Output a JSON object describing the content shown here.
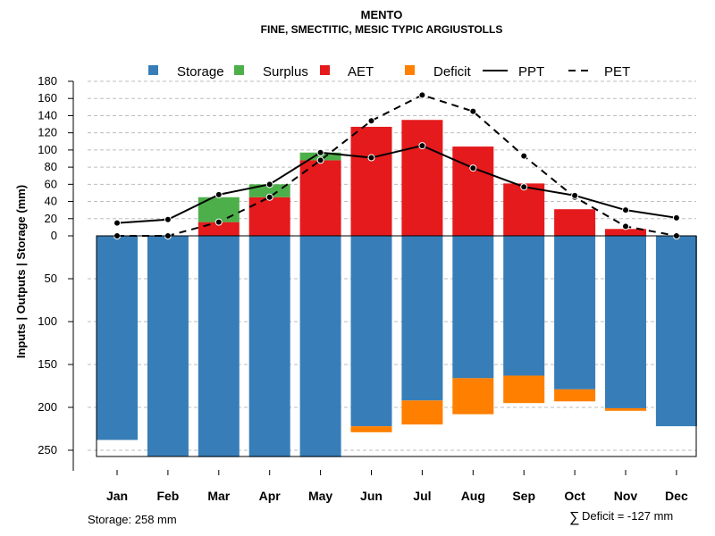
{
  "chart_data": {
    "type": "bar",
    "title": "MENTO",
    "subtitle": "FINE, SMECTITIC, MESIC TYPIC ARGIUSTOLLS",
    "ylabel": "Inputs | Outputs | Storage    (mm)",
    "categories": [
      "Jan",
      "Feb",
      "Mar",
      "Apr",
      "May",
      "Jun",
      "Jul",
      "Aug",
      "Sep",
      "Oct",
      "Nov",
      "Dec"
    ],
    "upper_axis": {
      "ylim": [
        0,
        180
      ],
      "ticks": [
        "0",
        "20",
        "40",
        "60",
        "80",
        "100",
        "120",
        "140",
        "160",
        "180"
      ]
    },
    "lower_axis": {
      "ylim": [
        0,
        258
      ],
      "ticks": [
        "50",
        "100",
        "150",
        "200",
        "250"
      ]
    },
    "series": [
      {
        "name": "Storage",
        "color": "#377EB8",
        "values": [
          238,
          257,
          258,
          258,
          258,
          222,
          192,
          166,
          163,
          179,
          201,
          222
        ]
      },
      {
        "name": "Surplus",
        "color": "#4DAF4A",
        "values": [
          0,
          0,
          29,
          15,
          9,
          0,
          0,
          0,
          0,
          0,
          0,
          0
        ]
      },
      {
        "name": "AET",
        "color": "#E41A1C",
        "values": [
          0,
          0,
          16,
          45,
          88,
          127,
          135,
          104,
          61,
          31,
          8,
          0
        ]
      },
      {
        "name": "Deficit",
        "color": "#FF7F00",
        "values": [
          0,
          0,
          0,
          0,
          0,
          7,
          28,
          42,
          32,
          14,
          3,
          0
        ]
      },
      {
        "name": "PPT",
        "color": "#000000",
        "style": "solid",
        "values": [
          15,
          19,
          48,
          60,
          97,
          91,
          105,
          79,
          57,
          47,
          30,
          21
        ]
      },
      {
        "name": "PET",
        "color": "#000000",
        "style": "dashed",
        "values": [
          0,
          0,
          16,
          45,
          88,
          134,
          164,
          145,
          93,
          45,
          11,
          0
        ]
      }
    ],
    "legend_position": "top",
    "grid": true
  },
  "footer": {
    "storage_label": "Storage: 258 mm",
    "deficit_symbol": "∑",
    "deficit_label": "Deficit = -127 mm"
  }
}
